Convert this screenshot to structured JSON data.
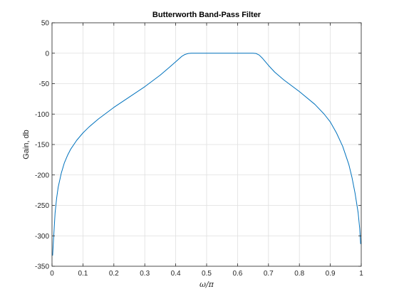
{
  "chart_data": {
    "type": "line",
    "title": "Butterworth Band-Pass Filter",
    "xlabel": "ω/π",
    "ylabel": "Gain, db",
    "xlim": [
      0,
      1
    ],
    "ylim": [
      -350,
      50
    ],
    "xticks": [
      0,
      0.1,
      0.2,
      0.3,
      0.4,
      0.5,
      0.6,
      0.7,
      0.8,
      0.9,
      1
    ],
    "xtick_labels": [
      "0",
      "0.1",
      "0.2",
      "0.3",
      "0.4",
      "0.5",
      "0.6",
      "0.7",
      "0.8",
      "0.9",
      "1"
    ],
    "yticks": [
      50,
      0,
      -50,
      -100,
      -150,
      -200,
      -250,
      -300,
      -350
    ],
    "ytick_labels": [
      "50",
      "0",
      "-50",
      "-100",
      "-150",
      "-200",
      "-250",
      "-300",
      "-350"
    ],
    "grid": true,
    "series": [
      {
        "color": "#0072bd",
        "x": [
          0.002,
          0.005,
          0.01,
          0.015,
          0.02,
          0.03,
          0.04,
          0.05,
          0.06,
          0.08,
          0.1,
          0.12,
          0.15,
          0.2,
          0.25,
          0.3,
          0.35,
          0.38,
          0.4,
          0.42,
          0.43,
          0.44,
          0.45,
          0.5,
          0.55,
          0.6,
          0.65,
          0.66,
          0.67,
          0.68,
          0.7,
          0.72,
          0.75,
          0.8,
          0.85,
          0.88,
          0.9,
          0.92,
          0.94,
          0.96,
          0.97,
          0.98,
          0.99,
          0.995,
          0.998
        ],
        "y": [
          -332,
          -305,
          -262,
          -238,
          -220,
          -197,
          -180,
          -168,
          -158,
          -143,
          -131,
          -121,
          -108,
          -89,
          -72,
          -55,
          -36,
          -23,
          -14,
          -5,
          -2,
          -0.5,
          0,
          0,
          0,
          0,
          0,
          -0.5,
          -3,
          -8,
          -20,
          -31,
          -44,
          -63,
          -84,
          -100,
          -113,
          -131,
          -153,
          -183,
          -204,
          -230,
          -262,
          -288,
          -313
        ]
      }
    ]
  }
}
